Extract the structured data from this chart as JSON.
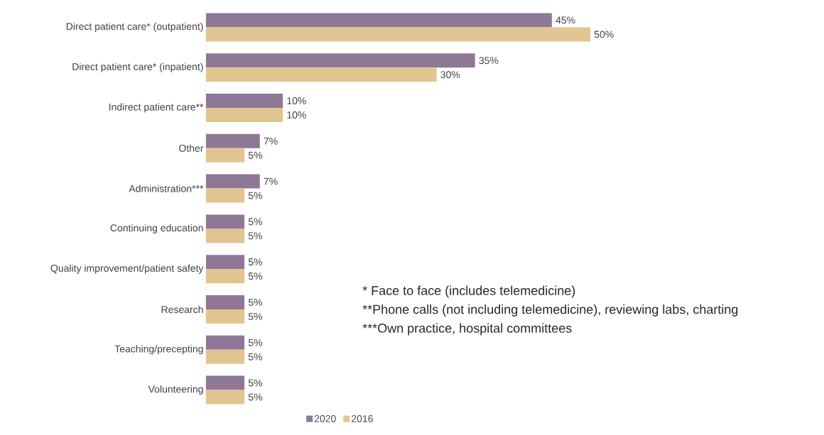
{
  "chart_data": {
    "type": "bar",
    "orientation": "horizontal",
    "categories": [
      "Direct patient care* (outpatient)",
      "Direct patient care* (inpatient)",
      "Indirect patient care**",
      "Other",
      "Administration***",
      "Continuing education",
      "Quality improvement/patient safety",
      "Research",
      "Teaching/precepting",
      "Volunteering"
    ],
    "series": [
      {
        "name": "2020",
        "color": "#8e7896",
        "values": [
          45,
          35,
          10,
          7,
          7,
          5,
          5,
          5,
          5,
          5
        ],
        "value_labels": [
          "45%",
          "35%",
          "10%",
          "7%",
          "7%",
          "5%",
          "5%",
          "5%",
          "5%",
          "5%"
        ]
      },
      {
        "name": "2016",
        "color": "#e1c590",
        "values": [
          50,
          30,
          10,
          5,
          5,
          5,
          5,
          5,
          5,
          5
        ],
        "value_labels": [
          "50%",
          "30%",
          "10%",
          "5%",
          "5%",
          "5%",
          "5%",
          "5%",
          "5%",
          "5%"
        ]
      }
    ],
    "legend": "bottom",
    "annotations": [
      "* Face to face (includes telemedicine)",
      "**Phone calls (not including telemedicine), reviewing labs, charting",
      "***Own practice, hospital committees"
    ]
  }
}
